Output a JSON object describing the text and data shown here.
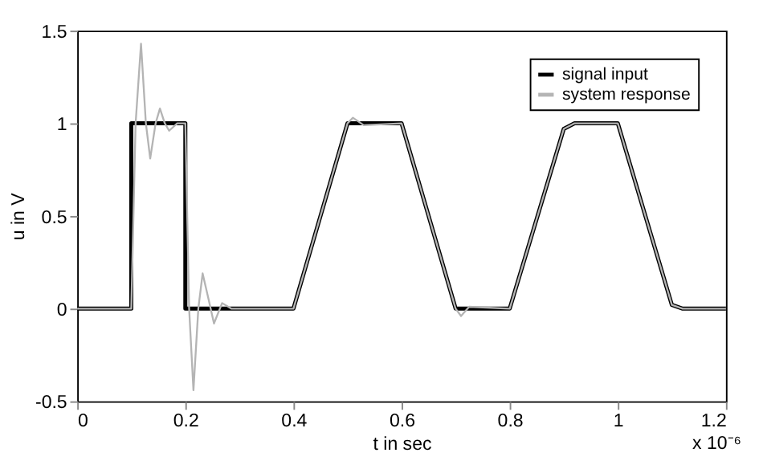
{
  "chart_data": {
    "type": "line",
    "xlabel": "t in sec",
    "ylabel": "u in V",
    "xlim": [
      0,
      1.2
    ],
    "xticks": [
      0,
      0.2,
      0.4,
      0.6,
      0.8,
      1,
      1.2
    ],
    "ylim": [
      -0.5,
      1.5
    ],
    "yticks": [
      -0.5,
      0,
      0.5,
      1,
      1.5
    ],
    "grid": false,
    "legend": "top right",
    "annotations": [
      "x 10⁻⁶"
    ],
    "series": [
      {
        "name": "signal input",
        "color": "#000000",
        "x": [
          0,
          0.1,
          0.1,
          0.2,
          0.2,
          0.4,
          0.5,
          0.6,
          0.7,
          0.8,
          0.9,
          0.92,
          1.0,
          1.1,
          1.12,
          1.2
        ],
        "values": [
          0,
          0,
          1,
          1,
          0,
          0,
          1,
          1,
          0,
          0,
          0.97,
          1,
          1,
          0.02,
          0,
          0
        ]
      },
      {
        "name": "system response",
        "color": "#b4b4b4",
        "x": [
          0,
          0.1,
          0.108,
          0.118,
          0.127,
          0.135,
          0.145,
          0.153,
          0.162,
          0.17,
          0.185,
          0.2,
          0.207,
          0.215,
          0.224,
          0.232,
          0.243,
          0.253,
          0.268,
          0.285,
          0.4,
          0.5,
          0.51,
          0.53,
          0.6,
          0.7,
          0.71,
          0.725,
          0.8,
          0.9,
          0.92,
          1.0,
          1.1,
          1.12,
          1.2
        ],
        "values": [
          0,
          0,
          1.0,
          1.43,
          1.0,
          0.81,
          1.0,
          1.08,
          1.0,
          0.96,
          1.0,
          1.0,
          0.0,
          -0.44,
          0,
          0.19,
          0.05,
          -0.08,
          0.03,
          0,
          0,
          1,
          1.03,
          0.99,
          1,
          0,
          -0.04,
          0.01,
          0,
          0.97,
          1,
          1,
          0.02,
          0,
          0
        ]
      }
    ]
  }
}
